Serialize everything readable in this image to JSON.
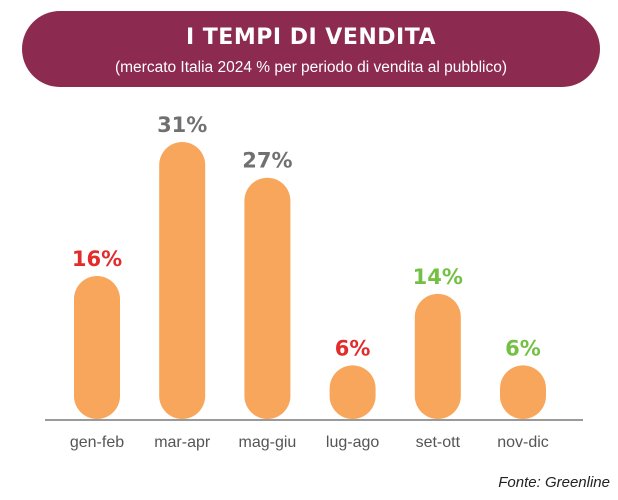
{
  "header": {
    "title": "I TEMPI DI VENDITA",
    "subtitle": "(mercato Italia 2024 % per periodo di vendita al pubblico)"
  },
  "source": "Fonte: Greenline",
  "colors": {
    "banner": "#8c2a50",
    "bar": "#f7a65b",
    "label_red": "#e32b2b",
    "label_gray": "#707070",
    "label_green": "#74c043",
    "axis": "#9a9a9a",
    "category": "#555555"
  },
  "chart_data": {
    "type": "bar",
    "title": "I TEMPI DI VENDITA",
    "subtitle": "(mercato Italia 2024 % per periodo di vendita al pubblico)",
    "categories": [
      "gen-feb",
      "mar-apr",
      "mag-giu",
      "lug-ago",
      "set-ott",
      "nov-dic"
    ],
    "values": [
      16,
      31,
      27,
      6,
      14,
      6
    ],
    "value_labels": [
      "16%",
      "31%",
      "27%",
      "6%",
      "14%",
      "6%"
    ],
    "label_colors": [
      "red",
      "gray",
      "gray",
      "red",
      "green",
      "green"
    ],
    "unit": "%",
    "ylim": [
      0,
      31
    ],
    "grid": false,
    "legend": "none"
  }
}
